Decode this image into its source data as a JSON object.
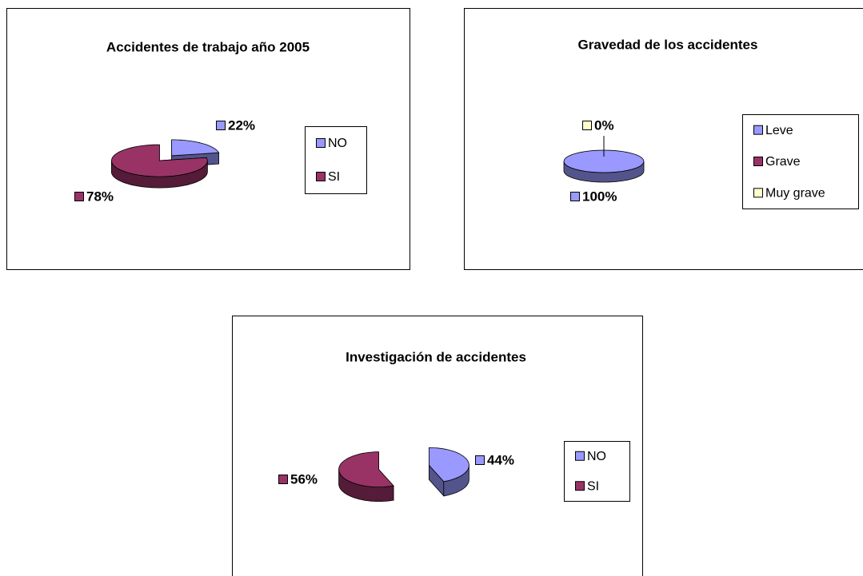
{
  "chart_data": [
    {
      "type": "pie",
      "title": "Accidentes de trabajo año 2005",
      "categories": [
        "NO",
        "SI"
      ],
      "values": [
        22,
        78
      ],
      "value_labels": [
        "22%",
        "78%"
      ],
      "colors": [
        "#9999ff",
        "#993366"
      ]
    },
    {
      "type": "pie",
      "title": "Gravedad de los accidentes",
      "categories": [
        "Leve",
        "Grave",
        "Muy grave"
      ],
      "values": [
        100,
        0,
        0
      ],
      "value_labels": [
        "100%",
        null,
        "0%"
      ],
      "colors": [
        "#9999ff",
        "#993366",
        "#ffffcc"
      ]
    },
    {
      "type": "pie",
      "title": "Investigación de accidentes",
      "categories": [
        "NO",
        "SI"
      ],
      "values": [
        44,
        56
      ],
      "value_labels": [
        "44%",
        "56%"
      ],
      "colors": [
        "#9999ff",
        "#993366"
      ]
    }
  ]
}
